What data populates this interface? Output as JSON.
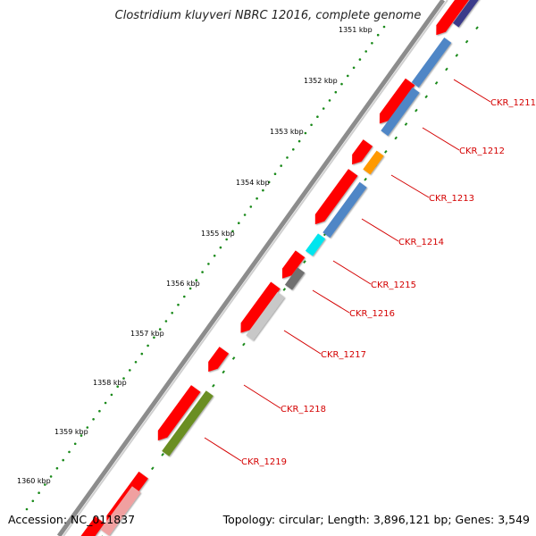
{
  "title": "Clostridium kluyveri NBRC 12016, complete genome",
  "footer": {
    "accession": "Accession: NC_011837",
    "summary": "Topology: circular; Length: 3,896,121 bp; Genes: 3,549"
  },
  "ticks": [
    "1351 kbp",
    "1352 kbp",
    "1353 kbp",
    "1354 kbp",
    "1355 kbp",
    "1356 kbp",
    "1357 kbp",
    "1358 kbp",
    "1359 kbp",
    "1360 kbp"
  ],
  "colors": {
    "backbone": "#888888",
    "forward_gene": "#ff0000",
    "skew_dots": "#1a8a1a",
    "label": "#d40000"
  },
  "genes": [
    {
      "name": "CKR_1211",
      "color": "#4f86c6"
    },
    {
      "name": "CKR_1212",
      "color": "#4f86c6"
    },
    {
      "name": "CKR_1213",
      "color": "#ff9900"
    },
    {
      "name": "CKR_1214",
      "color": "#4f86c6"
    },
    {
      "name": "CKR_1215",
      "color": "#00e5ee"
    },
    {
      "name": "CKR_1216",
      "color": "#707070"
    },
    {
      "name": "CKR_1217",
      "color": "#c8c8c8"
    },
    {
      "name": "CKR_1218",
      "color": "#ffffff"
    },
    {
      "name": "CKR_1219",
      "color": "#6b8e23"
    }
  ]
}
